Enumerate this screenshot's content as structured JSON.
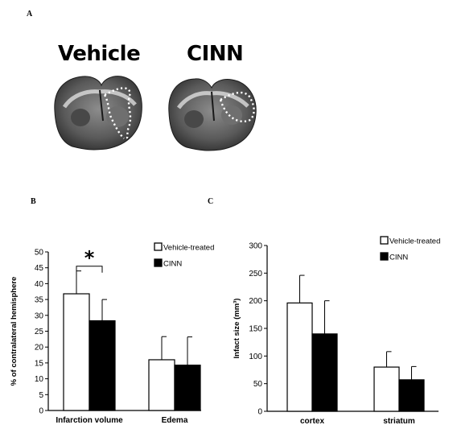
{
  "panels": {
    "a": "A",
    "b": "B",
    "c": "C"
  },
  "photo": {
    "left_title": "Vehicle",
    "right_title": "CINN"
  },
  "chart_data": [
    {
      "type": "bar",
      "panel": "B",
      "categories": [
        "Infarction volume",
        "Edema"
      ],
      "series": [
        {
          "name": "Vehicle-treated",
          "color": "#ffffff",
          "values": [
            36.8,
            16.0
          ],
          "errors": [
            7.2,
            7.3
          ]
        },
        {
          "name": "CINN",
          "color": "#000000",
          "values": [
            28.3,
            14.3
          ],
          "errors": [
            6.7,
            8.9
          ]
        }
      ],
      "ylabel": "% of contralateral hemisphere",
      "ylim": [
        0,
        50
      ],
      "yticks": [
        0,
        5,
        10,
        15,
        20,
        25,
        30,
        35,
        40,
        45,
        50
      ],
      "annotation": "*",
      "legend_position": "top-right",
      "grid": false
    },
    {
      "type": "bar",
      "panel": "C",
      "categories": [
        "cortex",
        "striatum"
      ],
      "series": [
        {
          "name": "Vehicle-treated",
          "color": "#ffffff",
          "values": [
            196,
            80
          ],
          "errors": [
            50,
            28
          ]
        },
        {
          "name": "CINN",
          "color": "#000000",
          "values": [
            140,
            57
          ],
          "errors": [
            60,
            24
          ]
        }
      ],
      "ylabel": "Infact size (mm³)",
      "ylim": [
        0,
        300
      ],
      "yticks": [
        0,
        50,
        100,
        150,
        200,
        250,
        300
      ],
      "legend_position": "top-right",
      "grid": false
    }
  ]
}
